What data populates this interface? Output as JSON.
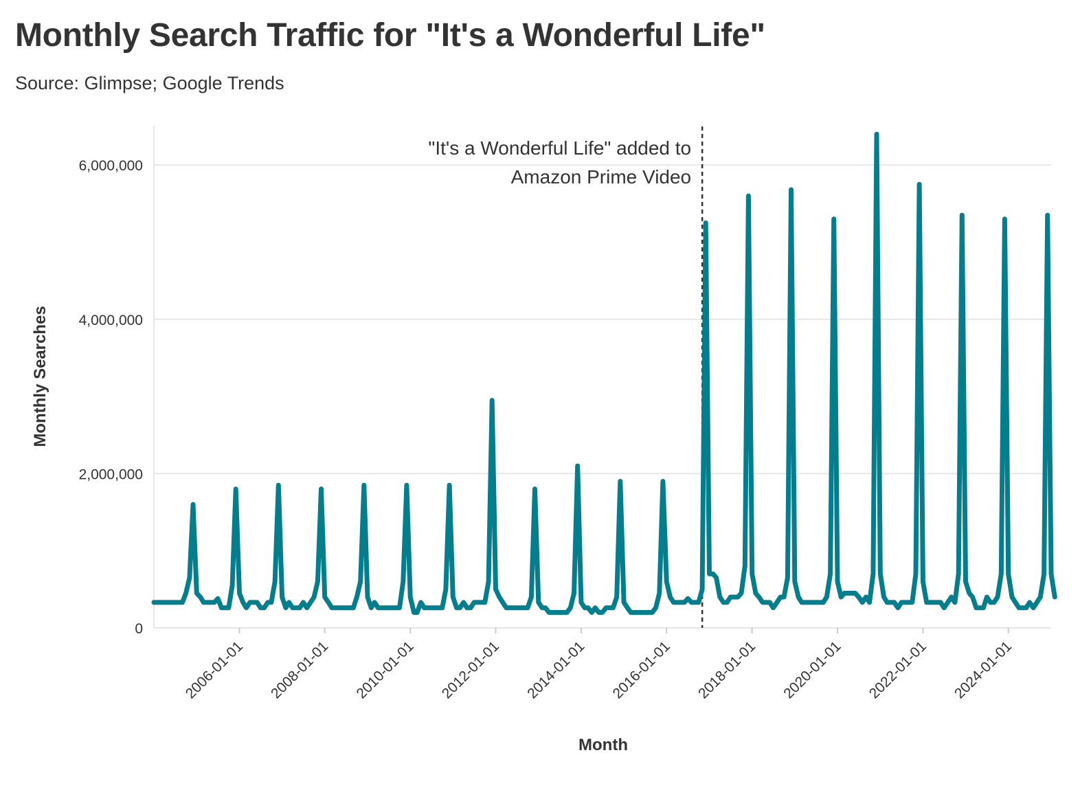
{
  "chart_data": {
    "type": "line",
    "title": "Monthly Search Traffic for \"It's a Wonderful Life\"",
    "subtitle": "Source: Glimpse; Google Trends",
    "xlabel": "Month",
    "ylabel": "Monthly Searches",
    "xlim": [
      "2004-01-01",
      "2025-01-01"
    ],
    "ylim": [
      0,
      6500000
    ],
    "y_ticks": [
      0,
      2000000,
      4000000,
      6000000
    ],
    "y_tick_labels": [
      "0",
      "2,000,000",
      "4,000,000",
      "6,000,000"
    ],
    "x_ticks": [
      "2006-01-01",
      "2008-01-01",
      "2010-01-01",
      "2012-01-01",
      "2014-01-01",
      "2016-01-01",
      "2018-01-01",
      "2020-01-01",
      "2022-01-01",
      "2024-01-01"
    ],
    "grid": true,
    "line_color": "#047e8d",
    "annotation": {
      "date": "2016-11-01",
      "lines": [
        "\"It's a Wonderful Life\" added to",
        "Amazon Prime Video"
      ]
    },
    "series": [
      {
        "values": [
          [
            "2004-01-01",
            330000
          ],
          [
            "2004-02-01",
            330000
          ],
          [
            "2004-03-01",
            330000
          ],
          [
            "2004-04-01",
            330000
          ],
          [
            "2004-05-01",
            330000
          ],
          [
            "2004-06-01",
            330000
          ],
          [
            "2004-07-01",
            330000
          ],
          [
            "2004-08-01",
            330000
          ],
          [
            "2004-09-01",
            330000
          ],
          [
            "2004-10-01",
            450000
          ],
          [
            "2004-11-01",
            650000
          ],
          [
            "2004-12-01",
            1600000
          ],
          [
            "2005-01-01",
            450000
          ],
          [
            "2005-02-01",
            400000
          ],
          [
            "2005-03-01",
            330000
          ],
          [
            "2005-04-01",
            330000
          ],
          [
            "2005-05-01",
            330000
          ],
          [
            "2005-06-01",
            330000
          ],
          [
            "2005-07-01",
            380000
          ],
          [
            "2005-08-01",
            260000
          ],
          [
            "2005-09-01",
            260000
          ],
          [
            "2005-10-01",
            260000
          ],
          [
            "2005-11-01",
            550000
          ],
          [
            "2005-12-01",
            1800000
          ],
          [
            "2006-01-01",
            450000
          ],
          [
            "2006-02-01",
            330000
          ],
          [
            "2006-03-01",
            260000
          ],
          [
            "2006-04-01",
            330000
          ],
          [
            "2006-05-01",
            330000
          ],
          [
            "2006-06-01",
            330000
          ],
          [
            "2006-07-01",
            260000
          ],
          [
            "2006-08-01",
            260000
          ],
          [
            "2006-09-01",
            330000
          ],
          [
            "2006-10-01",
            330000
          ],
          [
            "2006-11-01",
            600000
          ],
          [
            "2006-12-01",
            1850000
          ],
          [
            "2007-01-01",
            400000
          ],
          [
            "2007-02-01",
            260000
          ],
          [
            "2007-03-01",
            330000
          ],
          [
            "2007-04-01",
            260000
          ],
          [
            "2007-05-01",
            260000
          ],
          [
            "2007-06-01",
            260000
          ],
          [
            "2007-07-01",
            330000
          ],
          [
            "2007-08-01",
            260000
          ],
          [
            "2007-09-01",
            330000
          ],
          [
            "2007-10-01",
            400000
          ],
          [
            "2007-11-01",
            600000
          ],
          [
            "2007-12-01",
            1800000
          ],
          [
            "2008-01-01",
            400000
          ],
          [
            "2008-02-01",
            330000
          ],
          [
            "2008-03-01",
            260000
          ],
          [
            "2008-04-01",
            260000
          ],
          [
            "2008-05-01",
            260000
          ],
          [
            "2008-06-01",
            260000
          ],
          [
            "2008-07-01",
            260000
          ],
          [
            "2008-08-01",
            260000
          ],
          [
            "2008-09-01",
            260000
          ],
          [
            "2008-10-01",
            400000
          ],
          [
            "2008-11-01",
            600000
          ],
          [
            "2008-12-01",
            1850000
          ],
          [
            "2009-01-01",
            400000
          ],
          [
            "2009-02-01",
            260000
          ],
          [
            "2009-03-01",
            330000
          ],
          [
            "2009-04-01",
            260000
          ],
          [
            "2009-05-01",
            260000
          ],
          [
            "2009-06-01",
            260000
          ],
          [
            "2009-07-01",
            260000
          ],
          [
            "2009-08-01",
            260000
          ],
          [
            "2009-09-01",
            260000
          ],
          [
            "2009-10-01",
            260000
          ],
          [
            "2009-11-01",
            600000
          ],
          [
            "2009-12-01",
            1850000
          ],
          [
            "2010-01-01",
            400000
          ],
          [
            "2010-02-01",
            200000
          ],
          [
            "2010-03-01",
            200000
          ],
          [
            "2010-04-01",
            330000
          ],
          [
            "2010-05-01",
            260000
          ],
          [
            "2010-06-01",
            260000
          ],
          [
            "2010-07-01",
            260000
          ],
          [
            "2010-08-01",
            260000
          ],
          [
            "2010-09-01",
            260000
          ],
          [
            "2010-10-01",
            260000
          ],
          [
            "2010-11-01",
            500000
          ],
          [
            "2010-12-01",
            1850000
          ],
          [
            "2011-01-01",
            400000
          ],
          [
            "2011-02-01",
            260000
          ],
          [
            "2011-03-01",
            260000
          ],
          [
            "2011-04-01",
            330000
          ],
          [
            "2011-05-01",
            260000
          ],
          [
            "2011-06-01",
            260000
          ],
          [
            "2011-07-01",
            330000
          ],
          [
            "2011-08-01",
            330000
          ],
          [
            "2011-09-01",
            330000
          ],
          [
            "2011-10-01",
            330000
          ],
          [
            "2011-11-01",
            600000
          ],
          [
            "2011-12-01",
            2950000
          ],
          [
            "2012-01-01",
            500000
          ],
          [
            "2012-02-01",
            400000
          ],
          [
            "2012-03-01",
            330000
          ],
          [
            "2012-04-01",
            260000
          ],
          [
            "2012-05-01",
            260000
          ],
          [
            "2012-06-01",
            260000
          ],
          [
            "2012-07-01",
            260000
          ],
          [
            "2012-08-01",
            260000
          ],
          [
            "2012-09-01",
            260000
          ],
          [
            "2012-10-01",
            260000
          ],
          [
            "2012-11-01",
            400000
          ],
          [
            "2012-12-01",
            1800000
          ],
          [
            "2013-01-01",
            330000
          ],
          [
            "2013-02-01",
            260000
          ],
          [
            "2013-03-01",
            260000
          ],
          [
            "2013-04-01",
            200000
          ],
          [
            "2013-05-01",
            200000
          ],
          [
            "2013-06-01",
            200000
          ],
          [
            "2013-07-01",
            200000
          ],
          [
            "2013-08-01",
            200000
          ],
          [
            "2013-09-01",
            200000
          ],
          [
            "2013-10-01",
            260000
          ],
          [
            "2013-11-01",
            450000
          ],
          [
            "2013-12-01",
            2100000
          ],
          [
            "2014-01-01",
            330000
          ],
          [
            "2014-02-01",
            260000
          ],
          [
            "2014-03-01",
            260000
          ],
          [
            "2014-04-01",
            200000
          ],
          [
            "2014-05-01",
            260000
          ],
          [
            "2014-06-01",
            200000
          ],
          [
            "2014-07-01",
            200000
          ],
          [
            "2014-08-01",
            260000
          ],
          [
            "2014-09-01",
            260000
          ],
          [
            "2014-10-01",
            260000
          ],
          [
            "2014-11-01",
            400000
          ],
          [
            "2014-12-01",
            1900000
          ],
          [
            "2015-01-01",
            330000
          ],
          [
            "2015-02-01",
            260000
          ],
          [
            "2015-03-01",
            200000
          ],
          [
            "2015-04-01",
            200000
          ],
          [
            "2015-05-01",
            200000
          ],
          [
            "2015-06-01",
            200000
          ],
          [
            "2015-07-01",
            200000
          ],
          [
            "2015-08-01",
            200000
          ],
          [
            "2015-09-01",
            200000
          ],
          [
            "2015-10-01",
            260000
          ],
          [
            "2015-11-01",
            450000
          ],
          [
            "2015-12-01",
            1900000
          ],
          [
            "2016-01-01",
            600000
          ],
          [
            "2016-02-01",
            400000
          ],
          [
            "2016-03-01",
            330000
          ],
          [
            "2016-04-01",
            330000
          ],
          [
            "2016-05-01",
            330000
          ],
          [
            "2016-06-01",
            330000
          ],
          [
            "2016-07-01",
            380000
          ],
          [
            "2016-08-01",
            330000
          ],
          [
            "2016-09-01",
            330000
          ],
          [
            "2016-10-01",
            330000
          ],
          [
            "2016-11-01",
            500000
          ],
          [
            "2016-12-01",
            5250000
          ],
          [
            "2017-01-01",
            700000
          ],
          [
            "2017-02-01",
            700000
          ],
          [
            "2017-03-01",
            650000
          ],
          [
            "2017-04-01",
            400000
          ],
          [
            "2017-05-01",
            330000
          ],
          [
            "2017-06-01",
            330000
          ],
          [
            "2017-07-01",
            400000
          ],
          [
            "2017-08-01",
            400000
          ],
          [
            "2017-09-01",
            400000
          ],
          [
            "2017-10-01",
            450000
          ],
          [
            "2017-11-01",
            800000
          ],
          [
            "2017-12-01",
            5600000
          ],
          [
            "2018-01-01",
            700000
          ],
          [
            "2018-02-01",
            450000
          ],
          [
            "2018-03-01",
            400000
          ],
          [
            "2018-04-01",
            330000
          ],
          [
            "2018-05-01",
            330000
          ],
          [
            "2018-06-01",
            330000
          ],
          [
            "2018-07-01",
            260000
          ],
          [
            "2018-08-01",
            330000
          ],
          [
            "2018-09-01",
            400000
          ],
          [
            "2018-10-01",
            400000
          ],
          [
            "2018-11-01",
            650000
          ],
          [
            "2018-12-01",
            5680000
          ],
          [
            "2019-01-01",
            600000
          ],
          [
            "2019-02-01",
            400000
          ],
          [
            "2019-03-01",
            330000
          ],
          [
            "2019-04-01",
            330000
          ],
          [
            "2019-05-01",
            330000
          ],
          [
            "2019-06-01",
            330000
          ],
          [
            "2019-07-01",
            330000
          ],
          [
            "2019-08-01",
            330000
          ],
          [
            "2019-09-01",
            330000
          ],
          [
            "2019-10-01",
            400000
          ],
          [
            "2019-11-01",
            700000
          ],
          [
            "2019-12-01",
            5300000
          ],
          [
            "2020-01-01",
            600000
          ],
          [
            "2020-02-01",
            400000
          ],
          [
            "2020-03-01",
            450000
          ],
          [
            "2020-04-01",
            450000
          ],
          [
            "2020-05-01",
            450000
          ],
          [
            "2020-06-01",
            450000
          ],
          [
            "2020-07-01",
            400000
          ],
          [
            "2020-08-01",
            330000
          ],
          [
            "2020-09-01",
            400000
          ],
          [
            "2020-10-01",
            330000
          ],
          [
            "2020-11-01",
            700000
          ],
          [
            "2020-12-01",
            6400000
          ],
          [
            "2021-01-01",
            700000
          ],
          [
            "2021-02-01",
            400000
          ],
          [
            "2021-03-01",
            330000
          ],
          [
            "2021-04-01",
            330000
          ],
          [
            "2021-05-01",
            330000
          ],
          [
            "2021-06-01",
            260000
          ],
          [
            "2021-07-01",
            330000
          ],
          [
            "2021-08-01",
            330000
          ],
          [
            "2021-09-01",
            330000
          ],
          [
            "2021-10-01",
            330000
          ],
          [
            "2021-11-01",
            700000
          ],
          [
            "2021-12-01",
            5750000
          ],
          [
            "2022-01-01",
            600000
          ],
          [
            "2022-02-01",
            330000
          ],
          [
            "2022-03-01",
            330000
          ],
          [
            "2022-04-01",
            330000
          ],
          [
            "2022-05-01",
            330000
          ],
          [
            "2022-06-01",
            330000
          ],
          [
            "2022-07-01",
            260000
          ],
          [
            "2022-08-01",
            330000
          ],
          [
            "2022-09-01",
            400000
          ],
          [
            "2022-10-01",
            330000
          ],
          [
            "2022-11-01",
            700000
          ],
          [
            "2022-12-01",
            5350000
          ],
          [
            "2023-01-01",
            600000
          ],
          [
            "2023-02-01",
            450000
          ],
          [
            "2023-03-01",
            400000
          ],
          [
            "2023-04-01",
            260000
          ],
          [
            "2023-05-01",
            260000
          ],
          [
            "2023-06-01",
            260000
          ],
          [
            "2023-07-01",
            400000
          ],
          [
            "2023-08-01",
            330000
          ],
          [
            "2023-09-01",
            330000
          ],
          [
            "2023-10-01",
            400000
          ],
          [
            "2023-11-01",
            700000
          ],
          [
            "2023-12-01",
            5300000
          ],
          [
            "2024-01-01",
            700000
          ],
          [
            "2024-02-01",
            400000
          ],
          [
            "2024-03-01",
            330000
          ],
          [
            "2024-04-01",
            260000
          ],
          [
            "2024-05-01",
            260000
          ],
          [
            "2024-06-01",
            260000
          ],
          [
            "2024-07-01",
            330000
          ],
          [
            "2024-08-01",
            260000
          ],
          [
            "2024-09-01",
            330000
          ],
          [
            "2024-10-01",
            400000
          ],
          [
            "2024-11-01",
            700000
          ],
          [
            "2024-12-01",
            5350000
          ],
          [
            "2025-01-01",
            700000
          ],
          [
            "2025-02-01",
            400000
          ]
        ]
      }
    ]
  }
}
